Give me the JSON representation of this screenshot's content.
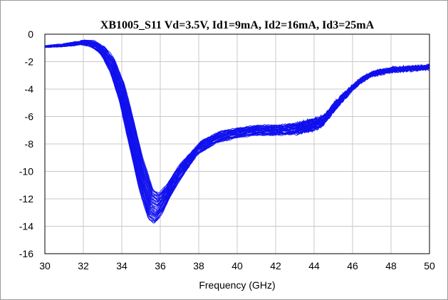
{
  "chart_data": {
    "type": "line",
    "title": "XB1005_S11  Vd=3.5V, Id1=9mA, Id2=16mA, Id3=25mA",
    "xlabel": "Frequency (GHz)",
    "ylabel": "",
    "xlim": [
      30,
      50
    ],
    "ylim": [
      -16,
      0
    ],
    "xticks": [
      30,
      32,
      34,
      36,
      38,
      40,
      42,
      44,
      46,
      48,
      50
    ],
    "yticks": [
      0,
      -2,
      -4,
      -6,
      -8,
      -10,
      -12,
      -14,
      -16
    ],
    "grid": true,
    "line_color": "#1010ee",
    "trace_count": 40,
    "nominal_curve": {
      "x": [
        30,
        31,
        32,
        32.5,
        33,
        33.5,
        34,
        34.5,
        35,
        35.5,
        35.8,
        36,
        36.3,
        36.6,
        37,
        37.5,
        38,
        39,
        40,
        41,
        42,
        43,
        44,
        44.5,
        45,
        45.5,
        46,
        46.5,
        47,
        48,
        49,
        50
      ],
      "y": [
        -0.9,
        -0.8,
        -0.6,
        -0.7,
        -1.2,
        -2.3,
        -4.3,
        -7.2,
        -10.2,
        -12.4,
        -12.7,
        -12.4,
        -11.8,
        -11.0,
        -10.1,
        -9.2,
        -8.3,
        -7.5,
        -7.2,
        -7.0,
        -7.0,
        -6.9,
        -6.6,
        -6.3,
        -5.4,
        -4.6,
        -3.9,
        -3.3,
        -2.9,
        -2.6,
        -2.5,
        -2.4
      ]
    },
    "spread": {
      "x": [
        30,
        33,
        34.5,
        35.5,
        36,
        37,
        38,
        40,
        42,
        44,
        45,
        46,
        47,
        50
      ],
      "dy": [
        0.02,
        0.2,
        0.9,
        1.1,
        1.1,
        0.8,
        0.5,
        0.35,
        0.35,
        0.45,
        0.5,
        0.3,
        0.15,
        0.1
      ]
    }
  }
}
